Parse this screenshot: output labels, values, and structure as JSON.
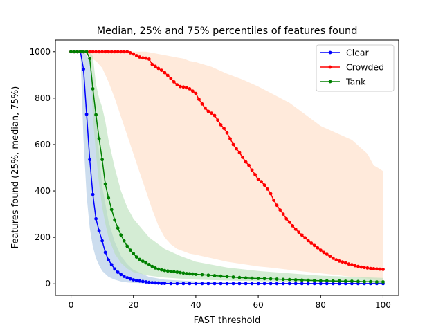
{
  "chart_data": {
    "type": "line",
    "title": "Median, 25% and 75% percentiles of features found",
    "xlabel": "FAST threshold",
    "ylabel": "Features found (25%, median, 75%)",
    "xlim": [
      -5,
      105
    ],
    "ylim": [
      -50,
      1050
    ],
    "x_ticks": [
      0,
      20,
      40,
      60,
      80,
      100
    ],
    "x_tick_labels": [
      "0",
      "20",
      "40",
      "60",
      "80",
      "100"
    ],
    "y_ticks": [
      0,
      200,
      400,
      600,
      800,
      1000
    ],
    "y_tick_labels": [
      "0",
      "200",
      "400",
      "600",
      "800",
      "1000"
    ],
    "grid": false,
    "legend_position": "top-right",
    "series": [
      {
        "name": "Clear",
        "color": "#0000ff",
        "band_color": "#aac6e3",
        "x": [
          0,
          1,
          2,
          3,
          4,
          5,
          6,
          7,
          8,
          9,
          10,
          11,
          12,
          13,
          14,
          15,
          16,
          17,
          18,
          19,
          20,
          21,
          22,
          23,
          24,
          25,
          26,
          27,
          28,
          29,
          30,
          32,
          34,
          36,
          38,
          40,
          42,
          44,
          46,
          48,
          50,
          52,
          54,
          56,
          58,
          60,
          62,
          64,
          66,
          68,
          70,
          72,
          74,
          76,
          78,
          80,
          82,
          84,
          86,
          88,
          90,
          92,
          94,
          96,
          98,
          100
        ],
        "median": [
          1000,
          1000,
          1000,
          1000,
          925,
          730,
          535,
          385,
          280,
          228,
          185,
          135,
          103,
          82,
          64,
          50,
          40,
          32,
          26,
          21,
          17,
          14,
          12,
          10,
          8,
          6,
          5,
          4,
          3,
          2,
          2,
          1,
          1,
          1,
          1,
          1,
          1,
          1,
          1,
          1,
          1,
          1,
          1,
          1,
          1,
          1,
          1,
          1,
          1,
          1,
          1,
          1,
          1,
          1,
          1,
          1,
          1,
          1,
          1,
          1,
          1,
          1,
          1,
          1,
          1,
          1
        ],
        "band_x": [
          0,
          2,
          3,
          4,
          5,
          6,
          7,
          8,
          9,
          10,
          12,
          14,
          16,
          18,
          20,
          25,
          30,
          40,
          50,
          60,
          80,
          100
        ],
        "p25": [
          1000,
          1000,
          1000,
          620,
          380,
          240,
          160,
          110,
          80,
          55,
          30,
          18,
          10,
          6,
          4,
          2,
          1,
          0,
          0,
          0,
          0,
          0
        ],
        "p75": [
          1000,
          1000,
          1000,
          1000,
          985,
          960,
          880,
          720,
          560,
          420,
          270,
          180,
          120,
          85,
          60,
          30,
          18,
          10,
          6,
          4,
          3,
          2
        ]
      },
      {
        "name": "Crowded",
        "color": "#ff0000",
        "band_color": "#ffdcc3",
        "x": [
          0,
          1,
          2,
          3,
          4,
          5,
          6,
          7,
          8,
          9,
          10,
          11,
          12,
          13,
          14,
          15,
          16,
          17,
          18,
          19,
          20,
          21,
          22,
          23,
          24,
          25,
          26,
          27,
          28,
          29,
          30,
          31,
          32,
          33,
          34,
          35,
          36,
          37,
          38,
          39,
          40,
          41,
          42,
          43,
          44,
          45,
          46,
          47,
          48,
          49,
          50,
          51,
          52,
          53,
          54,
          55,
          56,
          57,
          58,
          59,
          60,
          61,
          62,
          63,
          64,
          65,
          66,
          67,
          68,
          69,
          70,
          71,
          72,
          73,
          74,
          75,
          76,
          77,
          78,
          79,
          80,
          81,
          82,
          83,
          84,
          85,
          86,
          87,
          88,
          89,
          90,
          91,
          92,
          93,
          94,
          95,
          96,
          97,
          98,
          99,
          100
        ],
        "median": [
          1000,
          1000,
          1000,
          1000,
          1000,
          1000,
          1000,
          1000,
          1000,
          1000,
          1000,
          1000,
          1000,
          1000,
          1000,
          1000,
          1000,
          1000,
          1000,
          995,
          990,
          983,
          977,
          973,
          972,
          968,
          945,
          937,
          928,
          920,
          910,
          898,
          885,
          870,
          857,
          850,
          848,
          845,
          840,
          830,
          820,
          795,
          775,
          757,
          743,
          735,
          725,
          705,
          685,
          670,
          650,
          625,
          600,
          582,
          565,
          545,
          525,
          510,
          490,
          470,
          450,
          440,
          425,
          408,
          388,
          360,
          338,
          318,
          300,
          280,
          265,
          250,
          235,
          222,
          210,
          198,
          186,
          175,
          165,
          155,
          145,
          135,
          127,
          118,
          110,
          103,
          98,
          94,
          90,
          85,
          82,
          78,
          75,
          72,
          70,
          68,
          66,
          65,
          64,
          63,
          62
        ],
        "band_x": [
          0,
          4,
          6,
          8,
          10,
          12,
          14,
          16,
          18,
          20,
          22,
          24,
          26,
          28,
          30,
          32,
          34,
          36,
          38,
          40,
          45,
          50,
          55,
          60,
          65,
          70,
          75,
          80,
          85,
          90,
          95,
          97,
          99,
          100
        ],
        "p25": [
          1000,
          1000,
          975,
          960,
          930,
          870,
          800,
          720,
          640,
          560,
          480,
          400,
          320,
          250,
          200,
          170,
          150,
          140,
          130,
          125,
          110,
          95,
          85,
          75,
          68,
          60,
          52,
          45,
          38,
          30,
          22,
          18,
          12,
          10
        ],
        "p75": [
          1000,
          1000,
          1000,
          1000,
          1000,
          1000,
          1000,
          1000,
          1000,
          1000,
          1000,
          1000,
          995,
          990,
          985,
          980,
          975,
          970,
          960,
          955,
          935,
          905,
          880,
          850,
          815,
          780,
          730,
          680,
          650,
          620,
          560,
          510,
          495,
          485
        ]
      },
      {
        "name": "Tank",
        "color": "#008000",
        "band_color": "#b8e0b8",
        "x": [
          0,
          1,
          2,
          3,
          4,
          5,
          6,
          7,
          8,
          9,
          10,
          11,
          12,
          13,
          14,
          15,
          16,
          17,
          18,
          19,
          20,
          21,
          22,
          23,
          24,
          25,
          26,
          27,
          28,
          29,
          30,
          31,
          32,
          33,
          34,
          35,
          36,
          37,
          38,
          39,
          40,
          42,
          44,
          46,
          48,
          50,
          52,
          54,
          56,
          58,
          60,
          62,
          64,
          66,
          68,
          70,
          72,
          74,
          76,
          78,
          80,
          82,
          84,
          86,
          88,
          90,
          92,
          94,
          96,
          98,
          100
        ],
        "median": [
          1000,
          1000,
          1000,
          1000,
          1000,
          1000,
          970,
          840,
          728,
          625,
          535,
          430,
          370,
          320,
          275,
          240,
          210,
          185,
          162,
          145,
          130,
          115,
          105,
          97,
          90,
          83,
          75,
          68,
          63,
          60,
          57,
          55,
          53,
          52,
          50,
          48,
          46,
          44,
          43,
          42,
          41,
          39,
          37,
          35,
          33,
          31,
          29,
          27,
          25,
          24,
          23,
          22,
          21,
          20,
          19,
          18,
          17,
          16,
          15,
          14,
          13,
          13,
          12,
          12,
          11,
          11,
          10,
          9,
          9,
          8,
          8
        ],
        "band_x": [
          0,
          6,
          7,
          8,
          9,
          10,
          11,
          12,
          14,
          16,
          18,
          20,
          25,
          30,
          35,
          40,
          50,
          60,
          80,
          100
        ],
        "p25": [
          1000,
          1000,
          720,
          560,
          430,
          330,
          260,
          200,
          130,
          90,
          65,
          50,
          35,
          27,
          22,
          18,
          14,
          11,
          8,
          5
        ],
        "p75": [
          1000,
          1000,
          980,
          860,
          800,
          760,
          700,
          620,
          500,
          400,
          330,
          280,
          200,
          150,
          120,
          95,
          70,
          55,
          35,
          25
        ]
      }
    ]
  }
}
